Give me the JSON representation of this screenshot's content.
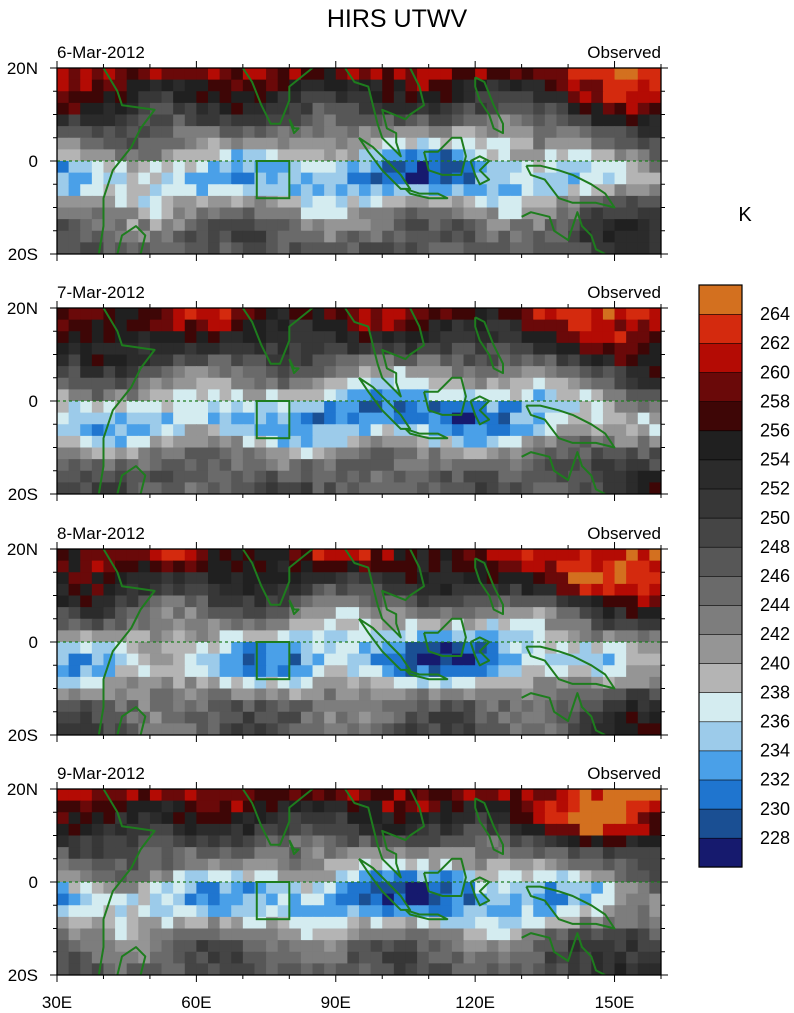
{
  "chart_data": {
    "type": "heatmap",
    "title": "HIRS UTWV",
    "colorbar": {
      "unit_label": "K",
      "levels": [
        228,
        230,
        232,
        234,
        236,
        238,
        240,
        242,
        244,
        246,
        248,
        250,
        252,
        254,
        256,
        258,
        260,
        262,
        264
      ],
      "tick_labels": [
        "228",
        "230",
        "232",
        "234",
        "236",
        "238",
        "240",
        "242",
        "244",
        "246",
        "248",
        "250",
        "252",
        "254",
        "256",
        "258",
        "260",
        "262",
        "264"
      ],
      "colors": [
        "#161a6e",
        "#1a4f93",
        "#1f75cf",
        "#4aa0e8",
        "#9ccbea",
        "#d4ecf0",
        "#b4b4b4",
        "#959595",
        "#7d7d7d",
        "#6a6a6a",
        "#575757",
        "#454545",
        "#373737",
        "#2b2b2b",
        "#202020",
        "#3e0606",
        "#6a0909",
        "#b40b04",
        "#d42a0e",
        "#d3701f"
      ]
    },
    "x_axis": {
      "range": [
        30,
        160
      ],
      "ticks": [
        30,
        60,
        90,
        120,
        150
      ],
      "tick_labels": [
        "30E",
        "60E",
        "90E",
        "120E",
        "150E"
      ]
    },
    "y_axis": {
      "range": [
        -20,
        20
      ],
      "ticks": [
        20,
        0,
        -20
      ],
      "tick_labels": [
        "20N",
        "0",
        "20S"
      ]
    },
    "box_region": {
      "lon": [
        73,
        80
      ],
      "lat": [
        -8,
        0
      ]
    },
    "panels": [
      {
        "date": "6-Mar-2012",
        "label": "Observed"
      },
      {
        "date": "7-Mar-2012",
        "label": "Observed"
      },
      {
        "date": "8-Mar-2012",
        "label": "Observed"
      },
      {
        "date": "9-Mar-2012",
        "label": "Observed"
      }
    ]
  }
}
